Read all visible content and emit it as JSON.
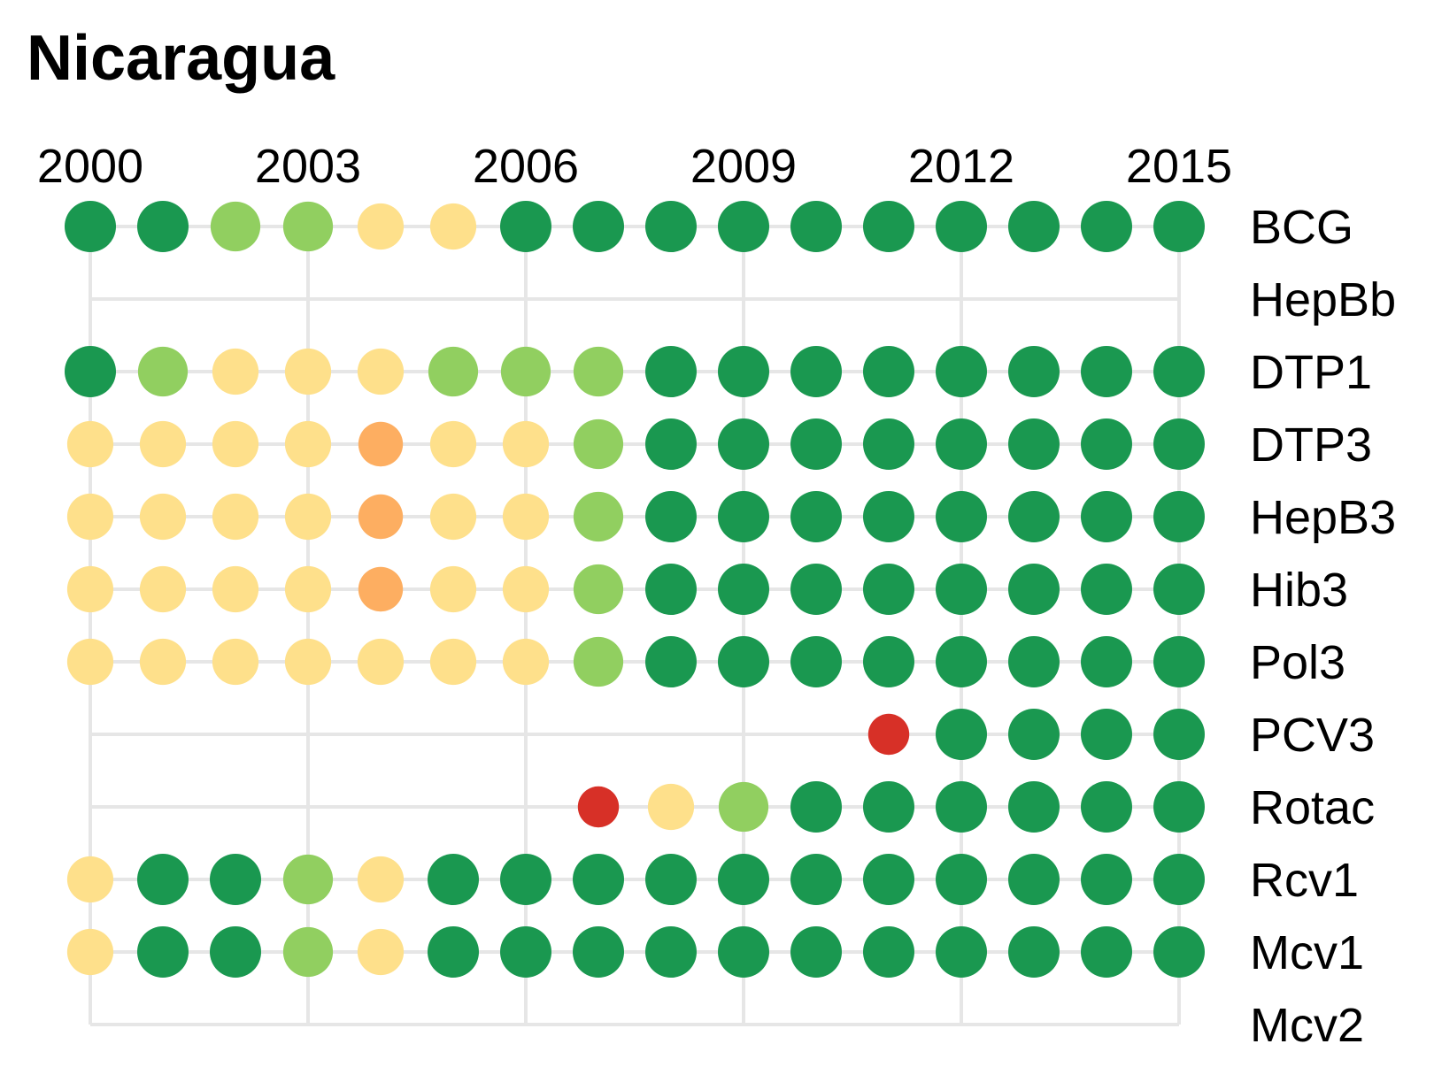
{
  "chart_data": {
    "type": "dot-matrix",
    "title": "Nicaragua",
    "xlabel": "",
    "ylabel": "",
    "years": [
      2000,
      2001,
      2002,
      2003,
      2004,
      2005,
      2006,
      2007,
      2008,
      2009,
      2010,
      2011,
      2012,
      2013,
      2014,
      2015
    ],
    "x_ticks": [
      "2000",
      "2003",
      "2006",
      "2009",
      "2012",
      "2015"
    ],
    "xlim": [
      2000,
      2015
    ],
    "legend": "none",
    "grid": true,
    "colors": {
      "grid": "#e6e6e6",
      "high": "#1a9850",
      "mid_high": "#91cf60",
      "mid": "#fee08b",
      "low_mid": "#fdae61",
      "low": "#d73027"
    },
    "level_sizes": {
      "high": 1.0,
      "mid_high": 0.97,
      "mid": 0.9,
      "low_mid": 0.87,
      "low": 0.8
    },
    "series": [
      {
        "name": "BCG",
        "line_start": 2000,
        "values": [
          "high",
          "high",
          "mid_high",
          "mid_high",
          "mid",
          "mid",
          "high",
          "high",
          "high",
          "high",
          "high",
          "high",
          "high",
          "high",
          "high",
          "high"
        ]
      },
      {
        "name": "HepBb",
        "line_start": 2000,
        "values": [
          null,
          null,
          null,
          null,
          null,
          null,
          null,
          null,
          null,
          null,
          null,
          null,
          null,
          null,
          null,
          null
        ]
      },
      {
        "name": "DTP1",
        "line_start": 2000,
        "values": [
          "high",
          "mid_high",
          "mid",
          "mid",
          "mid",
          "mid_high",
          "mid_high",
          "mid_high",
          "high",
          "high",
          "high",
          "high",
          "high",
          "high",
          "high",
          "high"
        ]
      },
      {
        "name": "DTP3",
        "line_start": 2000,
        "values": [
          "mid",
          "mid",
          "mid",
          "mid",
          "low_mid",
          "mid",
          "mid",
          "mid_high",
          "high",
          "high",
          "high",
          "high",
          "high",
          "high",
          "high",
          "high"
        ]
      },
      {
        "name": "HepB3",
        "line_start": 2000,
        "values": [
          "mid",
          "mid",
          "mid",
          "mid",
          "low_mid",
          "mid",
          "mid",
          "mid_high",
          "high",
          "high",
          "high",
          "high",
          "high",
          "high",
          "high",
          "high"
        ]
      },
      {
        "name": "Hib3",
        "line_start": 2000,
        "values": [
          "mid",
          "mid",
          "mid",
          "mid",
          "low_mid",
          "mid",
          "mid",
          "mid_high",
          "high",
          "high",
          "high",
          "high",
          "high",
          "high",
          "high",
          "high"
        ]
      },
      {
        "name": "Pol3",
        "line_start": 2000,
        "values": [
          "mid",
          "mid",
          "mid",
          "mid",
          "mid",
          "mid",
          "mid",
          "mid_high",
          "high",
          "high",
          "high",
          "high",
          "high",
          "high",
          "high",
          "high"
        ]
      },
      {
        "name": "PCV3",
        "line_start": 2000,
        "values": [
          null,
          null,
          null,
          null,
          null,
          null,
          null,
          null,
          null,
          null,
          null,
          "low",
          "high",
          "high",
          "high",
          "high"
        ]
      },
      {
        "name": "Rotac",
        "line_start": 2000,
        "values": [
          null,
          null,
          null,
          null,
          null,
          null,
          null,
          "low",
          "mid",
          "mid_high",
          "high",
          "high",
          "high",
          "high",
          "high",
          "high"
        ]
      },
      {
        "name": "Rcv1",
        "line_start": 2000,
        "values": [
          "mid",
          "high",
          "high",
          "mid_high",
          "mid",
          "high",
          "high",
          "high",
          "high",
          "high",
          "high",
          "high",
          "high",
          "high",
          "high",
          "high"
        ]
      },
      {
        "name": "Mcv1",
        "line_start": 2000,
        "values": [
          "mid",
          "high",
          "high",
          "mid_high",
          "mid",
          "high",
          "high",
          "high",
          "high",
          "high",
          "high",
          "high",
          "high",
          "high",
          "high",
          "high"
        ]
      },
      {
        "name": "Mcv2",
        "line_start": 2000,
        "values": [
          null,
          null,
          null,
          null,
          null,
          null,
          null,
          null,
          null,
          null,
          null,
          null,
          null,
          null,
          null,
          null
        ]
      }
    ]
  }
}
